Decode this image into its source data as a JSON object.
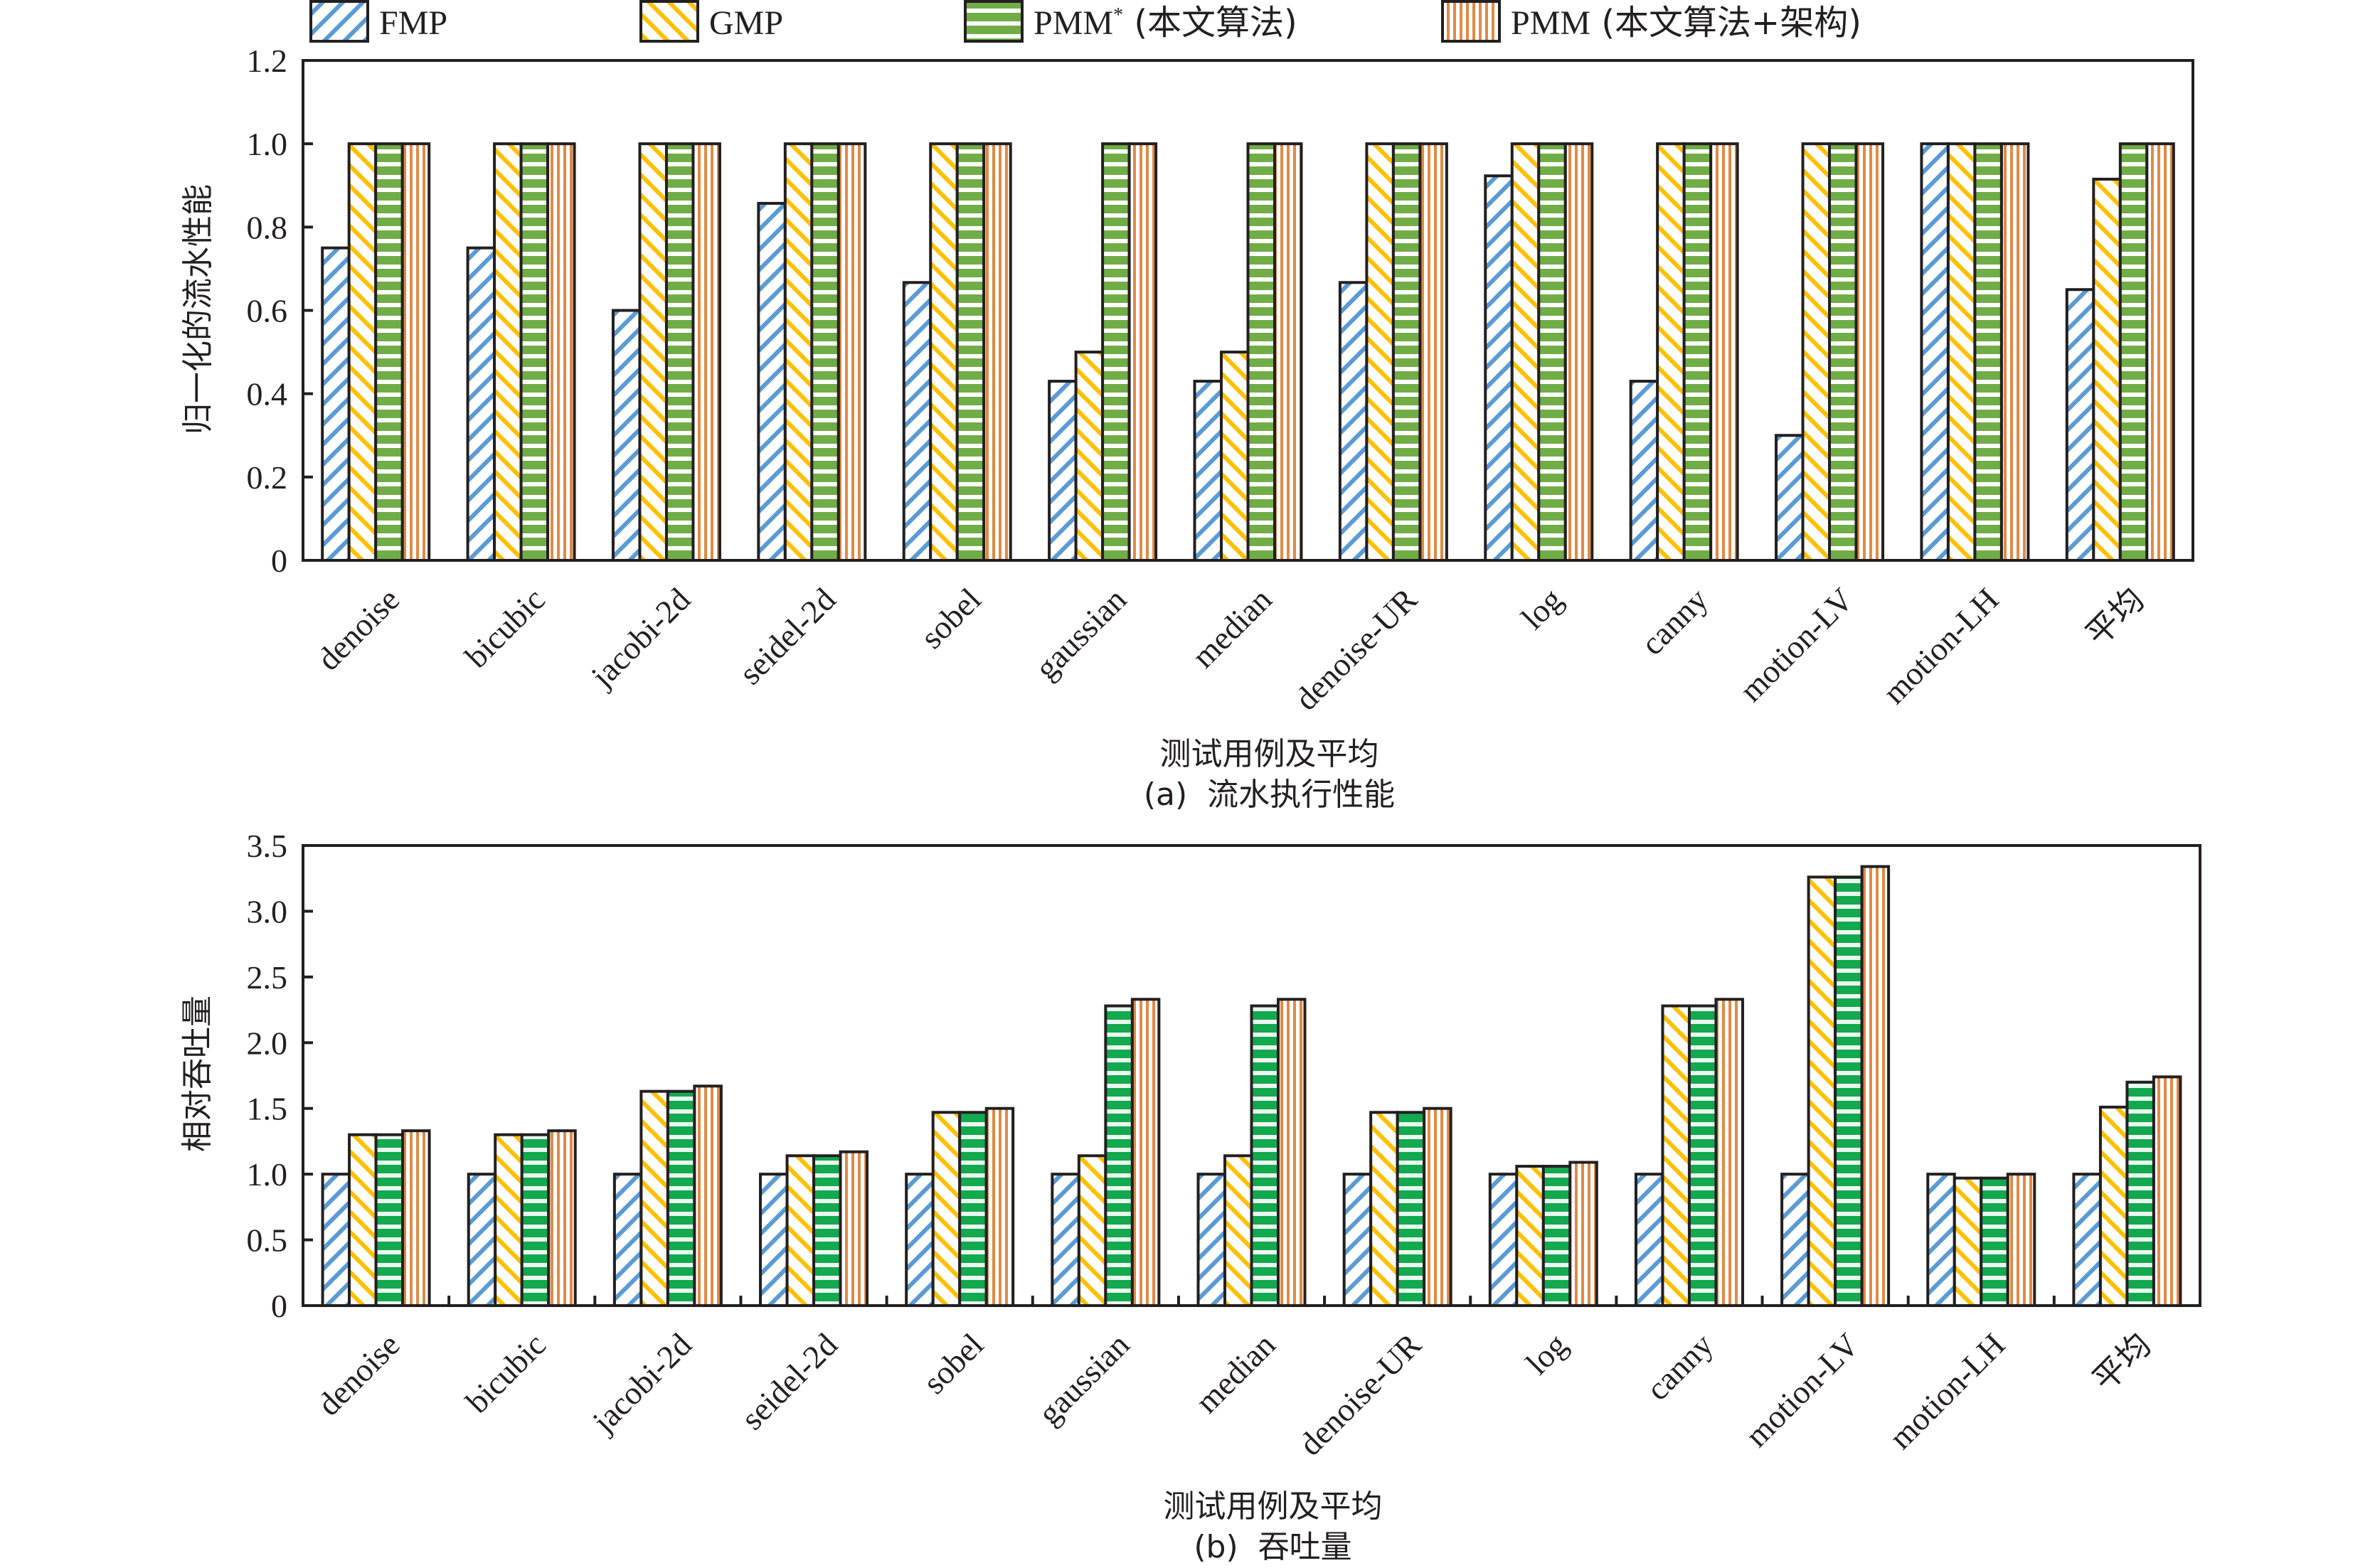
{
  "legend": {
    "items": [
      {
        "key": "FMP",
        "label": "FMP",
        "label_sup": "",
        "label_suffix": "",
        "pattern": "diag-down",
        "color": "#5b9bd5"
      },
      {
        "key": "GMP",
        "label": "GMP",
        "label_sup": "",
        "label_suffix": "",
        "pattern": "diag-up",
        "color": "#ffc000"
      },
      {
        "key": "PMM_star",
        "label": "PMM",
        "label_sup": "*",
        "label_suffix": " (本文算法)",
        "pattern": "horizontal",
        "color": "#70ad47"
      },
      {
        "key": "PMM",
        "label": "PMM",
        "label_sup": "",
        "label_suffix": " (本文算法+架构)",
        "pattern": "vertical",
        "color": "#e08a45"
      }
    ]
  },
  "chart_data": [
    {
      "type": "bar",
      "id": "a",
      "title": "",
      "caption": "(a)  流水执行性能",
      "xlabel": "测试用例及平均",
      "ylabel": "归一化的流水性能",
      "ylim": [
        0,
        1.2
      ],
      "yticks": [
        0,
        0.2,
        0.4,
        0.6,
        0.8,
        1.0,
        1.2
      ],
      "ytick_labels": [
        "0",
        "0.2",
        "0.4",
        "0.6",
        "0.8",
        "1.0",
        "1.2"
      ],
      "grid": false,
      "legend_position": "top",
      "x_group_ticks": false,
      "green_color": "#70ad47",
      "categories": [
        "denoise",
        "bicubic",
        "jacobi-2d",
        "seidel-2d",
        "sobel",
        "gaussian",
        "median",
        "denoise-UR",
        "log",
        "canny",
        "motion-LV",
        "motion-LH",
        "平均"
      ],
      "series": [
        {
          "name": "FMP",
          "values": [
            0.75,
            0.75,
            0.6,
            0.857,
            0.667,
            0.43,
            0.43,
            0.667,
            0.923,
            0.43,
            0.3,
            1.0,
            0.65
          ]
        },
        {
          "name": "GMP",
          "values": [
            1.0,
            1.0,
            1.0,
            1.0,
            1.0,
            0.5,
            0.5,
            1.0,
            1.0,
            1.0,
            1.0,
            1.0,
            0.915
          ]
        },
        {
          "name": "PMM* (本文算法)",
          "values": [
            1.0,
            1.0,
            1.0,
            1.0,
            1.0,
            1.0,
            1.0,
            1.0,
            1.0,
            1.0,
            1.0,
            1.0,
            1.0
          ]
        },
        {
          "name": "PMM (本文算法+架构)",
          "values": [
            1.0,
            1.0,
            1.0,
            1.0,
            1.0,
            1.0,
            1.0,
            1.0,
            1.0,
            1.0,
            1.0,
            1.0,
            1.0
          ]
        }
      ]
    },
    {
      "type": "bar",
      "id": "b",
      "title": "",
      "caption": "(b)  吞吐量",
      "xlabel": "测试用例及平均",
      "ylabel": "相对吞吐量",
      "ylim": [
        0,
        3.5
      ],
      "yticks": [
        0,
        0.5,
        1.0,
        1.5,
        2.0,
        2.5,
        3.0,
        3.5
      ],
      "ytick_labels": [
        "0",
        "0.5",
        "1.0",
        "1.5",
        "2.0",
        "2.5",
        "3.0",
        "3.5"
      ],
      "grid": false,
      "legend_position": "top",
      "x_group_ticks": true,
      "green_color": "#12a94f",
      "categories": [
        "denoise",
        "bicubic",
        "jacobi-2d",
        "seidel-2d",
        "sobel",
        "gaussian",
        "median",
        "denoise-UR",
        "log",
        "canny",
        "motion-LV",
        "motion-LH",
        "平均"
      ],
      "series": [
        {
          "name": "FMP",
          "values": [
            1.0,
            1.0,
            1.0,
            1.0,
            1.0,
            1.0,
            1.0,
            1.0,
            1.0,
            1.0,
            1.0,
            1.0,
            1.0
          ]
        },
        {
          "name": "GMP",
          "values": [
            1.3,
            1.3,
            1.63,
            1.14,
            1.47,
            1.14,
            1.14,
            1.47,
            1.06,
            2.28,
            3.26,
            0.97,
            1.51
          ]
        },
        {
          "name": "PMM* (本文算法)",
          "values": [
            1.3,
            1.3,
            1.63,
            1.14,
            1.47,
            2.28,
            2.28,
            1.47,
            1.06,
            2.28,
            3.26,
            0.97,
            1.7
          ]
        },
        {
          "name": "PMM (本文算法+架构)",
          "values": [
            1.33,
            1.33,
            1.67,
            1.17,
            1.5,
            2.33,
            2.33,
            1.5,
            1.09,
            2.33,
            3.34,
            1.0,
            1.74
          ]
        }
      ]
    }
  ]
}
